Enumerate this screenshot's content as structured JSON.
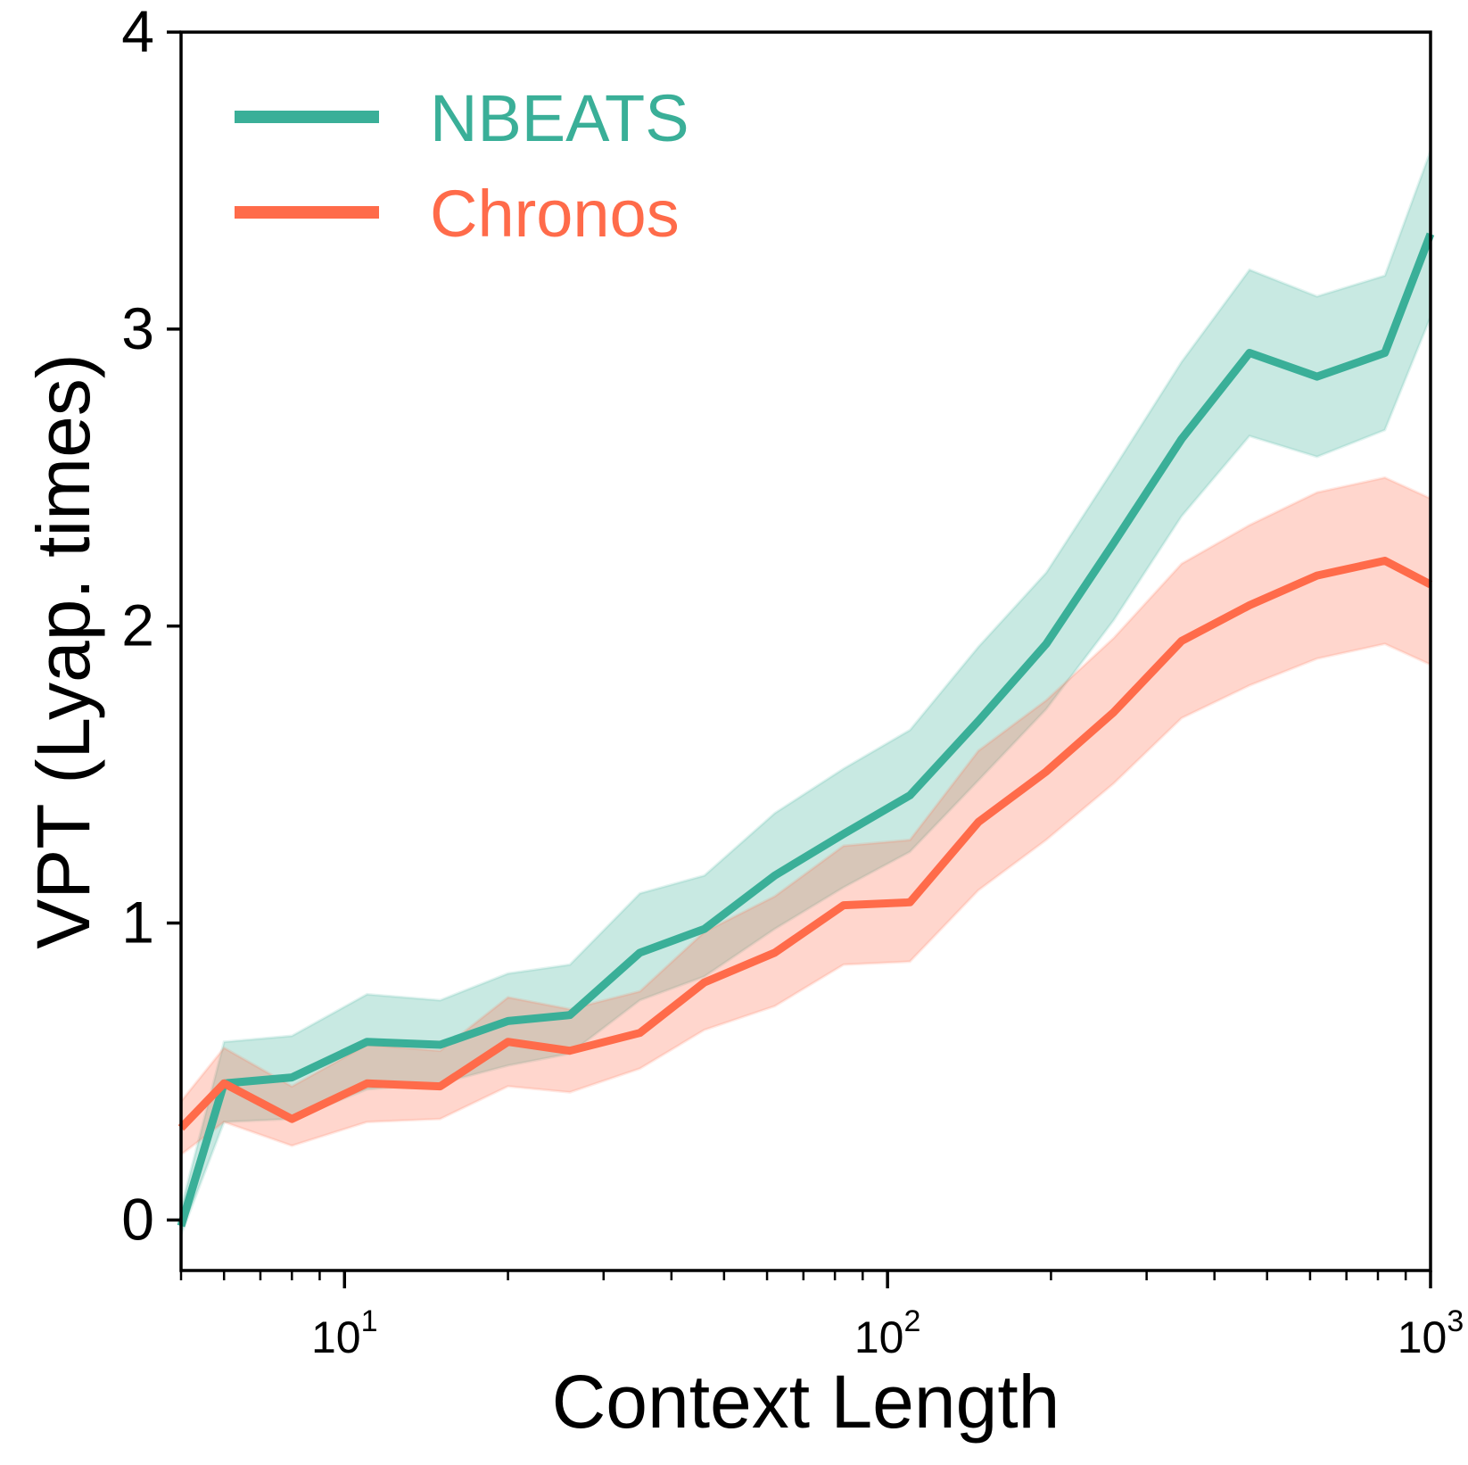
{
  "chart_data": {
    "type": "line",
    "xlabel": "Context Length",
    "ylabel": "VPT (Lyap. times)",
    "xscale": "log",
    "xlim": [
      5,
      1000
    ],
    "ylim": [
      -0.17,
      4
    ],
    "yticks": [
      0,
      1,
      2,
      3,
      4
    ],
    "ytick_labels": [
      "0",
      "1",
      "2",
      "3",
      "4"
    ],
    "xticks_major": [
      10,
      100,
      1000
    ],
    "xtick_labels": [
      {
        "base": "10",
        "exp": "1"
      },
      {
        "base": "10",
        "exp": "2"
      },
      {
        "base": "10",
        "exp": "3"
      }
    ],
    "grid": false,
    "legend_position": "top-left",
    "x": [
      5,
      6,
      8,
      11,
      15,
      20,
      26,
      35,
      46,
      62,
      83,
      110,
      147,
      196,
      261,
      348,
      464,
      618,
      824,
      1000
    ],
    "series": [
      {
        "name": "NBEATS",
        "color": "#3aaf98",
        "values": [
          -0.02,
          0.46,
          0.48,
          0.6,
          0.59,
          0.67,
          0.69,
          0.9,
          0.98,
          1.16,
          1.3,
          1.43,
          1.68,
          1.94,
          2.28,
          2.63,
          2.92,
          2.84,
          2.92,
          3.32
        ],
        "lower": [
          -0.05,
          0.33,
          0.34,
          0.44,
          0.46,
          0.52,
          0.56,
          0.74,
          0.82,
          0.98,
          1.12,
          1.24,
          1.48,
          1.72,
          2.02,
          2.37,
          2.64,
          2.57,
          2.66,
          3.04
        ],
        "upper": [
          0.04,
          0.6,
          0.62,
          0.76,
          0.74,
          0.83,
          0.86,
          1.1,
          1.16,
          1.37,
          1.52,
          1.65,
          1.93,
          2.18,
          2.53,
          2.89,
          3.2,
          3.11,
          3.18,
          3.6
        ]
      },
      {
        "name": "Chronos",
        "color": "#ff6b4a",
        "values": [
          0.31,
          0.46,
          0.34,
          0.46,
          0.45,
          0.6,
          0.57,
          0.63,
          0.8,
          0.9,
          1.06,
          1.07,
          1.34,
          1.51,
          1.71,
          1.95,
          2.07,
          2.17,
          2.22,
          2.14
        ],
        "lower": [
          0.22,
          0.33,
          0.25,
          0.33,
          0.34,
          0.45,
          0.43,
          0.51,
          0.64,
          0.72,
          0.86,
          0.87,
          1.11,
          1.28,
          1.47,
          1.69,
          1.8,
          1.89,
          1.94,
          1.87
        ],
        "upper": [
          0.4,
          0.58,
          0.45,
          0.59,
          0.57,
          0.75,
          0.71,
          0.77,
          0.97,
          1.09,
          1.26,
          1.28,
          1.58,
          1.75,
          1.96,
          2.21,
          2.34,
          2.45,
          2.5,
          2.43
        ]
      }
    ]
  }
}
